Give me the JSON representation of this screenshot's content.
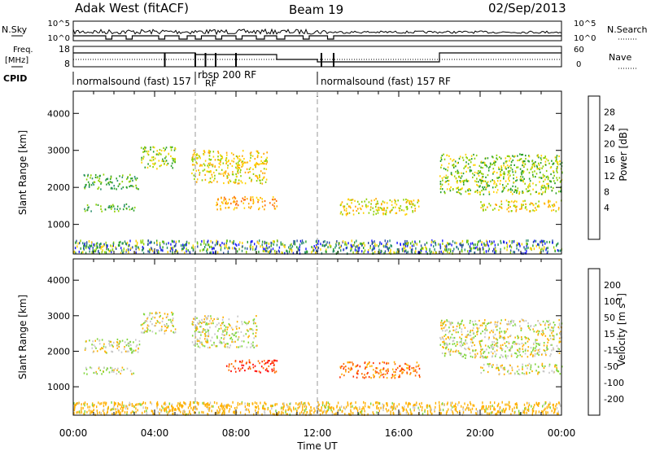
{
  "header": {
    "station": "Adak West (fitACF)",
    "beam": "Beam 19",
    "date": "02/Sep/2013"
  },
  "noise_panel": {
    "left_label": "N.Sky",
    "left_ticks": [
      "10^5",
      "10^0"
    ],
    "right_ticks": [
      "10^5",
      "10^0"
    ],
    "right_label": "N.Search"
  },
  "freq_panel": {
    "label_line1": "Freq.",
    "label_line2": "[MHz]",
    "left_ticks": [
      "18",
      "8"
    ],
    "right_ticks": [
      "60",
      "0"
    ],
    "right_label": "Nave",
    "cpid_label": "CPID",
    "modes": [
      {
        "name": "normalsound (fast) 157",
        "start": 0.0
      },
      {
        "name": "RF",
        "start": 5.0
      },
      {
        "name": "rbsp 200 RF",
        "start": 6.0
      },
      {
        "name": "normalsound (fast) 157 RF",
        "start": 12.0
      }
    ]
  },
  "chart_data": [
    {
      "type": "heatmap",
      "name": "power",
      "ylabel": "Slant Range [km]",
      "xlabel": "Time UT",
      "xlim": [
        0,
        24
      ],
      "ylim": [
        200,
        4600
      ],
      "x_ticks": [
        "00:00",
        "04:00",
        "08:00",
        "12:00",
        "16:00",
        "20:00",
        "00:00"
      ],
      "y_ticks": [
        1000,
        2000,
        3000,
        4000
      ],
      "colorbar": {
        "label": "Power [dB]",
        "ticks": [
          "28",
          "24",
          "20",
          "16",
          "12",
          "8",
          "4"
        ],
        "colors": [
          "#ff0000",
          "#ff6a00",
          "#ffa500",
          "#ffd200",
          "#8fd000",
          "#2aa02a",
          "#2a8f6e",
          "#2e4ea5",
          "#1a1aff"
        ]
      },
      "scatter_regions": [
        {
          "t0": 0.5,
          "t1": 3.3,
          "r0": 1950,
          "r1": 2350,
          "level": 3
        },
        {
          "t0": 0.5,
          "t1": 3.0,
          "r0": 1350,
          "r1": 1550,
          "level": 3
        },
        {
          "t0": 3.3,
          "t1": 5.0,
          "r0": 2500,
          "r1": 3100,
          "level": 4
        },
        {
          "t0": 5.8,
          "t1": 9.5,
          "r0": 2100,
          "r1": 3000,
          "level": 5
        },
        {
          "t0": 7.0,
          "t1": 10.0,
          "r0": 1400,
          "r1": 1750,
          "level": 6
        },
        {
          "t0": 13.0,
          "t1": 17.0,
          "r0": 1250,
          "r1": 1700,
          "level": 5
        },
        {
          "t0": 18.0,
          "t1": 24.0,
          "r0": 1800,
          "r1": 2900,
          "level": 4
        },
        {
          "t0": 20.0,
          "t1": 24.0,
          "r0": 1350,
          "r1": 1650,
          "level": 5
        }
      ]
    },
    {
      "type": "heatmap",
      "name": "velocity",
      "ylabel": "Slant Range [km]",
      "xlabel": "Time UT",
      "xlim": [
        0,
        24
      ],
      "ylim": [
        200,
        4600
      ],
      "x_ticks": [
        "00:00",
        "04:00",
        "08:00",
        "12:00",
        "16:00",
        "20:00",
        "00:00"
      ],
      "y_ticks": [
        1000,
        2000,
        3000,
        4000
      ],
      "colorbar": {
        "label": "Velocity [m s^-1]",
        "ticks": [
          "200",
          "100",
          "50",
          "15",
          "-15",
          "-50",
          "-100",
          "-200"
        ],
        "colors": [
          "#1a2aa8",
          "#2a7a9a",
          "#2fa05a",
          "#7fd63a",
          "#c8c8c8",
          "#ffb000",
          "#ff7000",
          "#ff3000",
          "#ff0000"
        ]
      },
      "scatter_regions": [
        {
          "t0": 0.5,
          "t1": 3.3,
          "r0": 1950,
          "r1": 2350,
          "level": 4
        },
        {
          "t0": 0.5,
          "t1": 3.0,
          "r0": 1350,
          "r1": 1550,
          "level": 4
        },
        {
          "t0": 3.3,
          "t1": 5.0,
          "r0": 2500,
          "r1": 3100,
          "level": 4
        },
        {
          "t0": 5.8,
          "t1": 9.0,
          "r0": 2100,
          "r1": 3000,
          "level": 4
        },
        {
          "t0": 7.5,
          "t1": 10.0,
          "r0": 1400,
          "r1": 1750,
          "level": 7
        },
        {
          "t0": 13.0,
          "t1": 17.0,
          "r0": 1250,
          "r1": 1700,
          "level": 6
        },
        {
          "t0": 18.0,
          "t1": 24.0,
          "r0": 1800,
          "r1": 2900,
          "level": 4
        },
        {
          "t0": 20.0,
          "t1": 24.0,
          "r0": 1350,
          "r1": 1650,
          "level": 4
        }
      ]
    }
  ]
}
